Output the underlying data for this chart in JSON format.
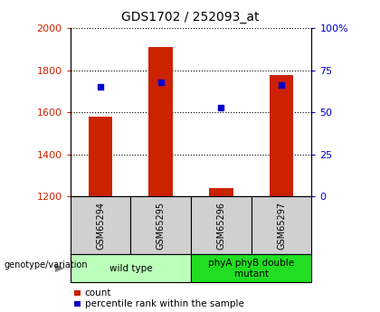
{
  "title": "GDS1702 / 252093_at",
  "samples": [
    "GSM65294",
    "GSM65295",
    "GSM65296",
    "GSM65297"
  ],
  "counts": [
    1580,
    1910,
    1242,
    1775
  ],
  "percentiles": [
    65,
    68,
    53,
    66
  ],
  "ylim_left": [
    1200,
    2000
  ],
  "ylim_right": [
    0,
    100
  ],
  "yticks_left": [
    1200,
    1400,
    1600,
    1800,
    2000
  ],
  "yticks_right": [
    0,
    25,
    50,
    75,
    100
  ],
  "yticklabels_right": [
    "0",
    "25",
    "50",
    "75",
    "100%"
  ],
  "bar_color": "#cc2200",
  "dot_color": "#0000cc",
  "bar_width": 0.4,
  "groups": [
    {
      "label": "wild type",
      "samples": [
        0,
        1
      ],
      "color": "#bbffbb"
    },
    {
      "label": "phyA phyB double\nmutant",
      "samples": [
        2,
        3
      ],
      "color": "#22dd22"
    }
  ],
  "genotype_label": "genotype/variation",
  "legend_count_label": "count",
  "legend_percentile_label": "percentile rank within the sample",
  "grid_color": "#000000",
  "background_color": "#ffffff",
  "sample_box_color": "#d0d0d0"
}
